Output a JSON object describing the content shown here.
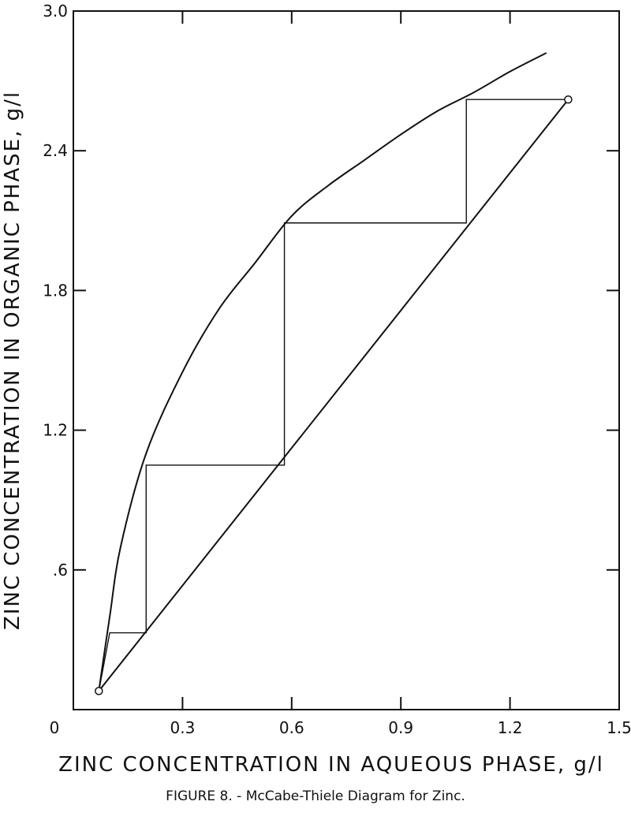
{
  "chart_data": {
    "type": "line",
    "xlabel": "ZINC CONCENTRATION IN AQUEOUS PHASE, g/l",
    "ylabel": "ZINC CONCENTRATION IN ORGANIC PHASE, g/l",
    "xlim": [
      0,
      1.5
    ],
    "ylim": [
      0,
      3.0
    ],
    "x_ticks": [
      0,
      0.3,
      0.6,
      0.9,
      1.2,
      1.5
    ],
    "x_tick_labels": [
      "0",
      "0.3",
      "0.6",
      "0.9",
      "1.2",
      "1.5"
    ],
    "y_ticks": [
      0.6,
      1.2,
      1.8,
      2.4,
      3.0
    ],
    "y_tick_labels": [
      ".6",
      "1.2",
      "1.8",
      "2.4",
      "3.0"
    ],
    "grid": false,
    "series": [
      {
        "kind": "equilibrium-curve",
        "points": [
          [
            0.07,
            0.08
          ],
          [
            0.1,
            0.4
          ],
          [
            0.13,
            0.7
          ],
          [
            0.2,
            1.1
          ],
          [
            0.3,
            1.45
          ],
          [
            0.4,
            1.72
          ],
          [
            0.5,
            1.92
          ],
          [
            0.6,
            2.12
          ],
          [
            0.7,
            2.25
          ],
          [
            0.8,
            2.36
          ],
          [
            0.9,
            2.47
          ],
          [
            1.0,
            2.57
          ],
          [
            1.1,
            2.65
          ],
          [
            1.2,
            2.74
          ],
          [
            1.3,
            2.82
          ]
        ]
      },
      {
        "kind": "operating-line",
        "points": [
          [
            0.07,
            0.08
          ],
          [
            1.36,
            2.62
          ]
        ]
      },
      {
        "kind": "stages",
        "points": [
          [
            0.07,
            0.08
          ],
          [
            0.1,
            0.33
          ],
          [
            0.2,
            0.33
          ],
          [
            0.2,
            1.05
          ],
          [
            0.58,
            1.05
          ],
          [
            0.58,
            2.09
          ],
          [
            1.08,
            2.09
          ],
          [
            1.08,
            2.62
          ],
          [
            1.36,
            2.62
          ]
        ]
      }
    ],
    "markers": [
      [
        0.07,
        0.08
      ],
      [
        1.36,
        2.62
      ]
    ]
  },
  "caption": "FIGURE 8. - McCabe-Thiele Diagram for Zinc."
}
